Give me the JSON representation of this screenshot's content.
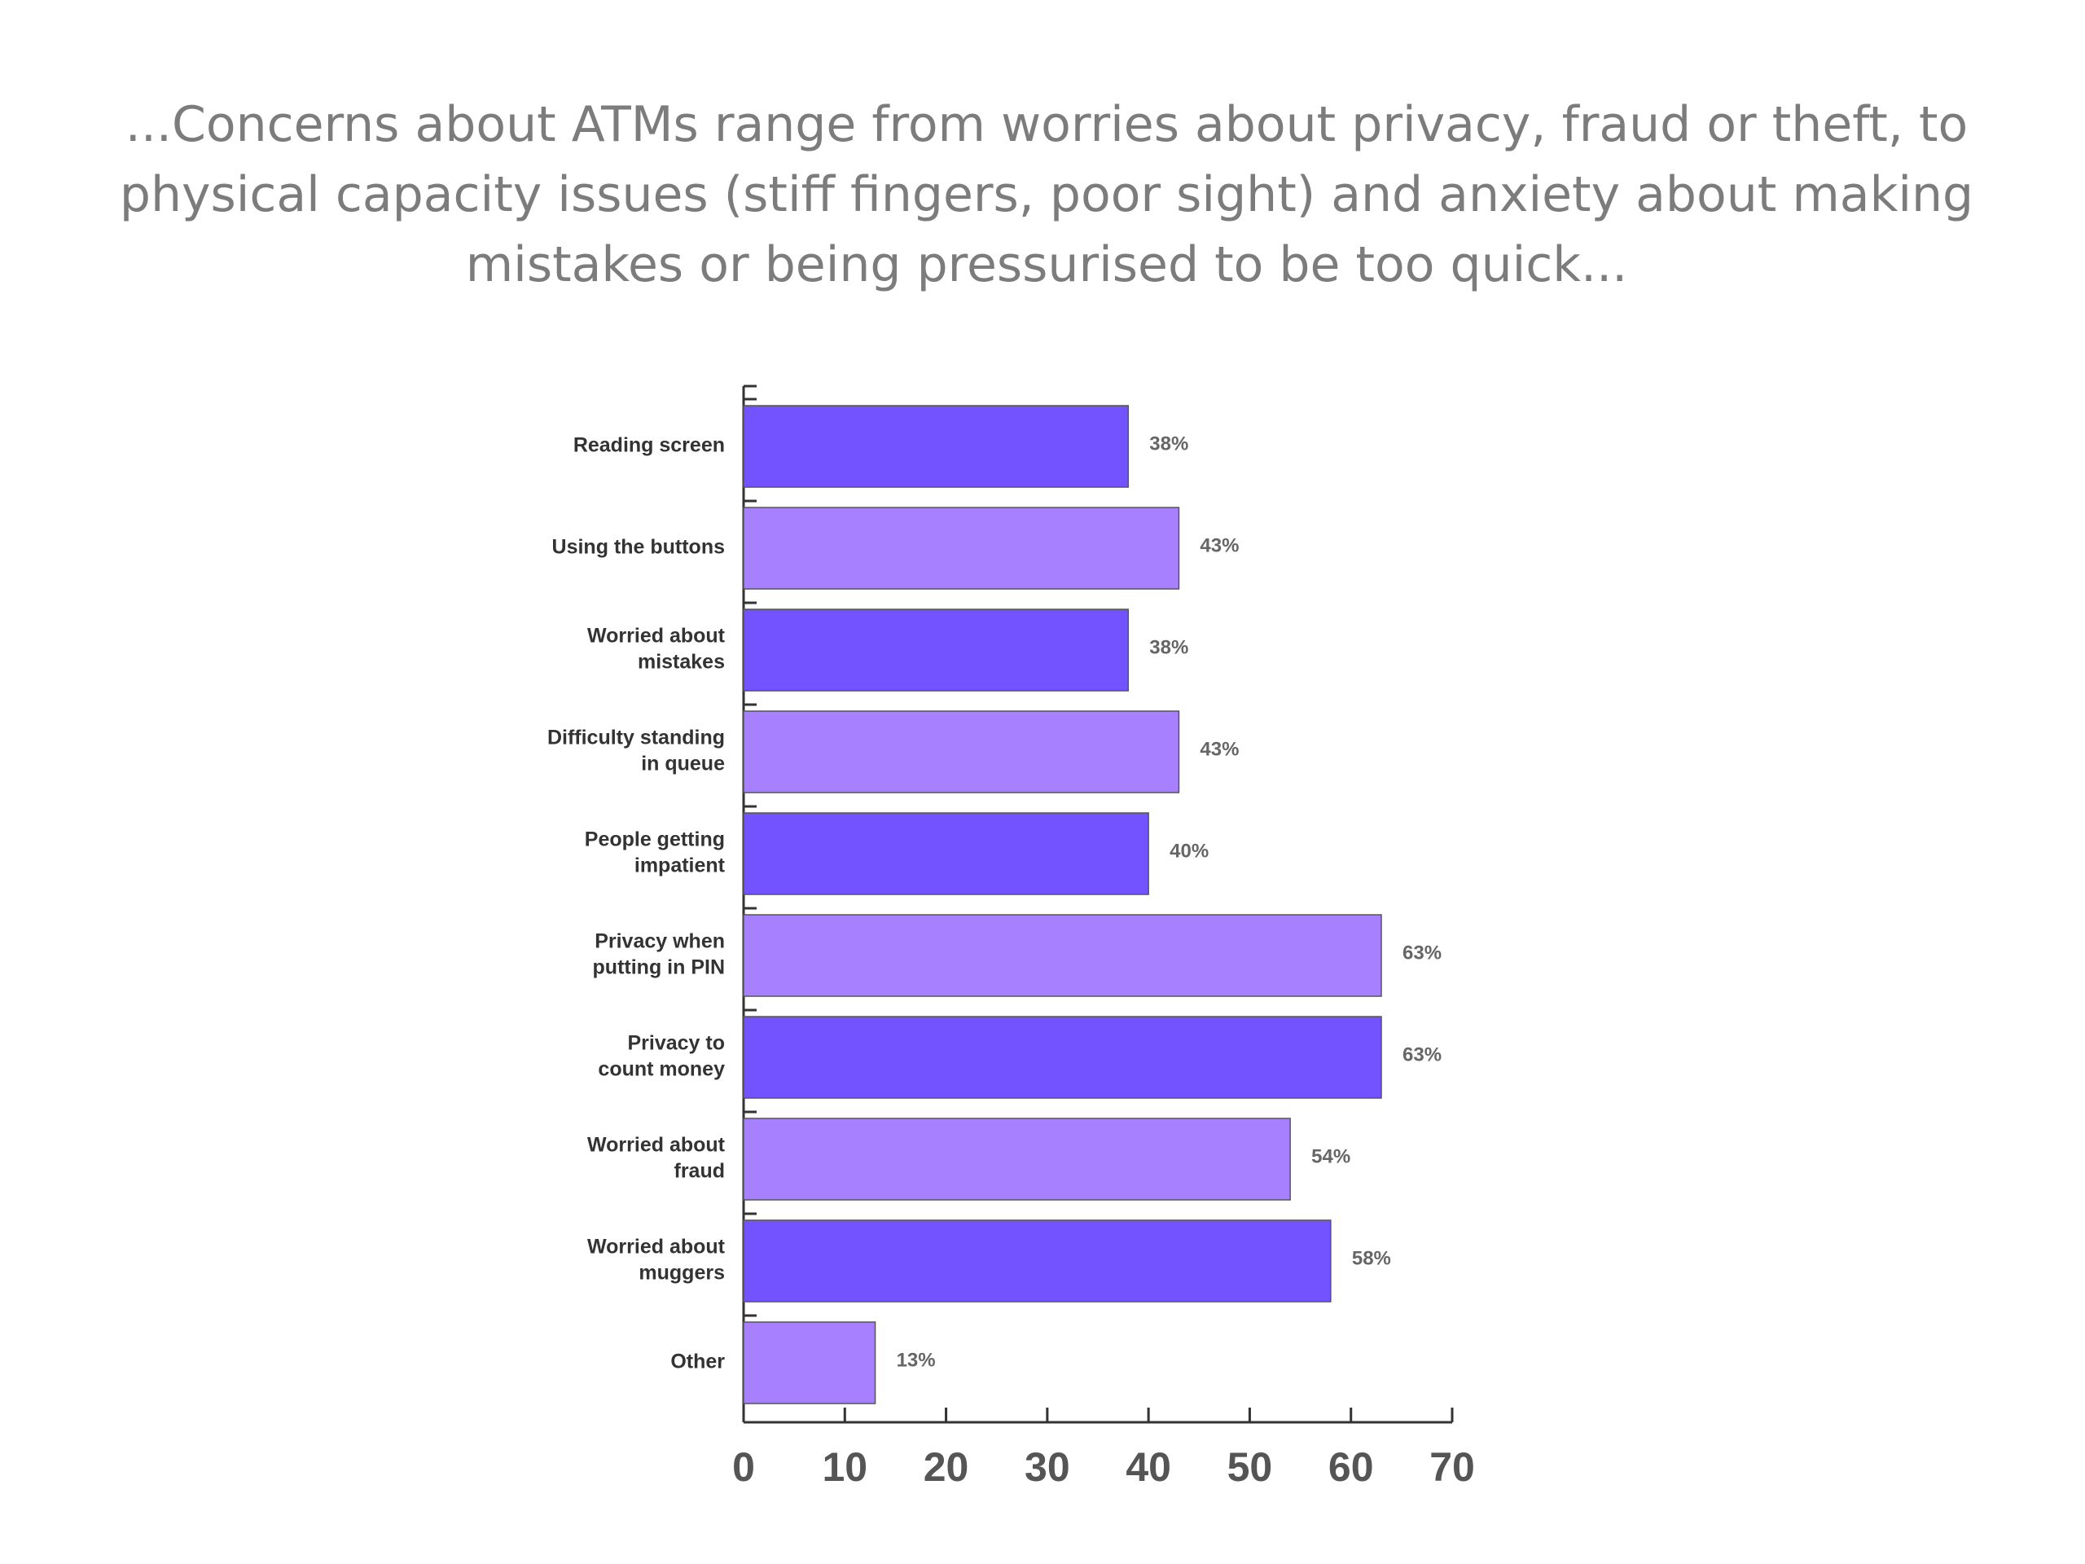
{
  "slide": {
    "title": "...Concerns about ATMs range from worries about privacy, fraud or theft, to physical capacity issues (stiff fingers, poor sight) and anxiety about making mistakes or being pressurised to be too quick..."
  },
  "colors": {
    "dark_bar": "#7353ff",
    "light_bar": "#a780ff",
    "axis": "#333333"
  },
  "chart_data": {
    "type": "bar",
    "orientation": "horizontal",
    "categories": [
      [
        "Reading screen"
      ],
      [
        "Using the buttons"
      ],
      [
        "Worried about",
        "mistakes"
      ],
      [
        "Difficulty standing",
        "in queue"
      ],
      [
        "People getting",
        "impatient"
      ],
      [
        "Privacy when",
        "putting in PIN"
      ],
      [
        "Privacy to",
        "count money"
      ],
      [
        "Worried about",
        "fraud"
      ],
      [
        "Worried about",
        "muggers"
      ],
      [
        "Other"
      ]
    ],
    "values": [
      38,
      43,
      38,
      43,
      40,
      63,
      63,
      54,
      58,
      13
    ],
    "value_labels": [
      "38%",
      "43%",
      "38%",
      "43%",
      "40%",
      "63%",
      "63%",
      "54%",
      "58%",
      "13%"
    ],
    "xlim": [
      0,
      70
    ],
    "xticks": [
      0,
      10,
      20,
      30,
      40,
      50,
      60,
      70
    ],
    "xlabel": "",
    "ylabel": "",
    "grid": false,
    "legend": "none"
  }
}
